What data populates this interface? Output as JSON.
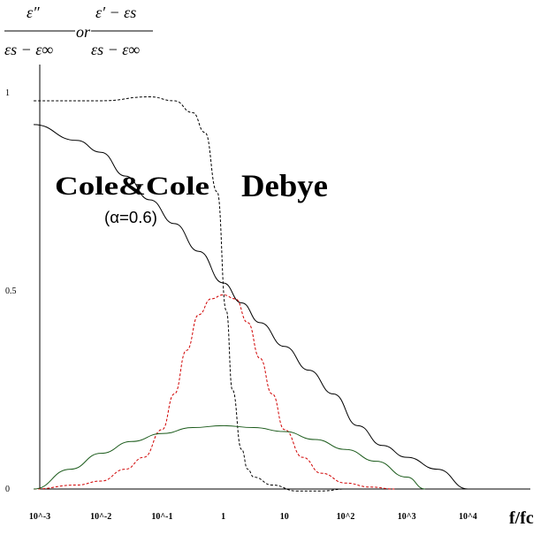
{
  "chart_data": {
    "type": "line",
    "ylabel_parts": {
      "left_num": "ε″",
      "left_den": "εs − ε∞",
      "or": "or",
      "right_num": "ε′ − εs",
      "right_den": "εs − ε∞"
    },
    "xlabel": "f/fc",
    "x_ticks": [
      {
        "label": "10^-3",
        "value": -3
      },
      {
        "label": "10^-2",
        "value": -2
      },
      {
        "label": "10^-1",
        "value": -1
      },
      {
        "label": "1",
        "value": 0
      },
      {
        "label": "10",
        "value": 1
      },
      {
        "label": "10^2",
        "value": 2
      },
      {
        "label": "10^3",
        "value": 3
      },
      {
        "label": "10^4",
        "value": 4
      }
    ],
    "y_ticks": [
      {
        "label": "0",
        "value": 0
      },
      {
        "label": "0.5",
        "value": 0.5
      },
      {
        "label": "1",
        "value": 1
      }
    ],
    "xlim": [
      -3.1,
      4.4
    ],
    "ylim": [
      0,
      1.05
    ],
    "annotations": [
      {
        "text": "Cole&Cole",
        "x": -2.4,
        "y": 0.72
      },
      {
        "text": "(α=0.6)",
        "x": -2.0,
        "y": 0.65
      },
      {
        "text": "Debye",
        "x": 0.8,
        "y": 0.72
      }
    ],
    "series": [
      {
        "style": "solid",
        "color": "#000000",
        "x": [
          -3.1,
          -2.4,
          -2.0,
          -1.6,
          -1.2,
          -0.8,
          -0.4,
          0.0,
          0.3,
          0.6,
          1.0,
          1.4,
          1.8,
          2.2,
          2.6,
          3.0,
          3.5,
          4.0
        ],
        "y": [
          0.92,
          0.88,
          0.85,
          0.79,
          0.73,
          0.67,
          0.6,
          0.52,
          0.47,
          0.42,
          0.36,
          0.3,
          0.24,
          0.16,
          0.11,
          0.08,
          0.05,
          0.0
        ]
      },
      {
        "style": "dashed",
        "color": "#000000",
        "x": [
          -3.1,
          -2.0,
          -1.2,
          -0.8,
          -0.5,
          -0.3,
          -0.1,
          0.05,
          0.15,
          0.3,
          0.4,
          0.5,
          0.8,
          1.2,
          1.6,
          2.0
        ],
        "y": [
          0.98,
          0.98,
          0.99,
          0.98,
          0.95,
          0.9,
          0.75,
          0.45,
          0.25,
          0.1,
          0.05,
          0.03,
          0.01,
          -0.005,
          -0.005,
          0.0
        ]
      },
      {
        "style": "dashed",
        "color": "#d00000",
        "x": [
          -3.1,
          -2.4,
          -2.0,
          -1.6,
          -1.3,
          -1.0,
          -0.8,
          -0.6,
          -0.4,
          -0.2,
          0.0,
          0.2,
          0.4,
          0.6,
          0.8,
          1.0,
          1.3,
          1.6,
          2.0,
          2.4,
          2.8
        ],
        "y": [
          0.0,
          0.01,
          0.02,
          0.05,
          0.08,
          0.15,
          0.24,
          0.35,
          0.44,
          0.48,
          0.49,
          0.48,
          0.42,
          0.33,
          0.24,
          0.15,
          0.08,
          0.04,
          0.015,
          0.005,
          0.0
        ]
      },
      {
        "style": "solid",
        "color": "#1a5a1a",
        "x": [
          -3.1,
          -2.5,
          -2.0,
          -1.5,
          -1.0,
          -0.5,
          0.0,
          0.5,
          1.0,
          1.5,
          2.0,
          2.5,
          3.0,
          3.3
        ],
        "y": [
          0.0,
          0.05,
          0.09,
          0.12,
          0.14,
          0.155,
          0.16,
          0.155,
          0.145,
          0.125,
          0.1,
          0.07,
          0.03,
          0.0
        ]
      }
    ]
  }
}
